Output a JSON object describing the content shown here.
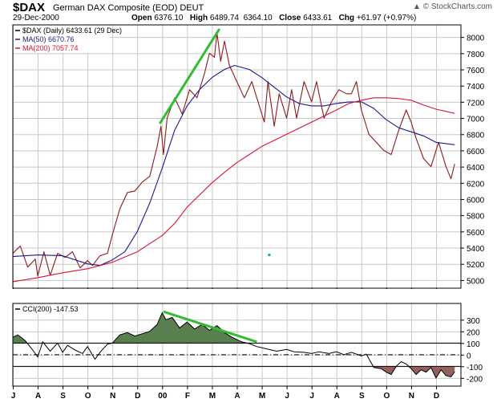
{
  "header": {
    "symbol": "$DAX",
    "description": "German DAX Composite (EOD)",
    "exchange": "DEUT",
    "date": "29-Dec-2000",
    "open_label": "Open",
    "open": "6376.10",
    "high_label": "High",
    "high": "6489.74",
    "low": "6364.10",
    "close_label": "Close",
    "close": "6433.61",
    "chg_label": "Chg",
    "chg": "+61.97 (+0.97%)",
    "watermark": "© StockCharts.com",
    "watermark_arrow": "▲"
  },
  "colors": {
    "price": "#8b1a1a",
    "ma50": "#1a1a8c",
    "ma200": "#dd1133",
    "trend": "#33bb33",
    "cci_pos_fill": "#5a7f4e",
    "cci_neg_fill": "#94605c",
    "grid": "#c8c8c8"
  },
  "chart_data": [
    {
      "type": "line",
      "title": "German DAX Composite (EOD)",
      "legend": [
        {
          "label": "$DAX (Daily) 6433.61 (29 Dec)",
          "color": "#000000"
        },
        {
          "label": "MA(50) 6670.76",
          "color": "#1a1a8c"
        },
        {
          "label": "MA(200) 7057.74",
          "color": "#dd1133"
        }
      ],
      "x_range": [
        0,
        18
      ],
      "ylim": [
        4900,
        8150
      ],
      "yticks": [
        5000,
        5200,
        5400,
        5600,
        5800,
        6000,
        6200,
        6400,
        6600,
        6800,
        7000,
        7200,
        7400,
        7600,
        7800,
        8000
      ],
      "ylabels": [
        "5000",
        "5200",
        "5400",
        "5600",
        "5800",
        "6000",
        "6200",
        "6400",
        "6600",
        "6800",
        "7000",
        "7200",
        "7400",
        "7600",
        "7800",
        "8000"
      ],
      "xtick_labels": [
        {
          "x": 0,
          "label": "J"
        },
        {
          "x": 1,
          "label": "A"
        },
        {
          "x": 2,
          "label": "S"
        },
        {
          "x": 3,
          "label": "O"
        },
        {
          "x": 4,
          "label": "N"
        },
        {
          "x": 5,
          "label": "D"
        },
        {
          "x": 6,
          "label": "00"
        },
        {
          "x": 7,
          "label": "F"
        },
        {
          "x": 8,
          "label": "M"
        },
        {
          "x": 9,
          "label": "A"
        },
        {
          "x": 10,
          "label": "M"
        },
        {
          "x": 11,
          "label": "J"
        },
        {
          "x": 12,
          "label": "J"
        },
        {
          "x": 13,
          "label": "A"
        },
        {
          "x": 14,
          "label": "S"
        },
        {
          "x": 15,
          "label": "O"
        },
        {
          "x": 16,
          "label": "N"
        },
        {
          "x": 17,
          "label": "D"
        }
      ],
      "series": [
        {
          "name": "$DAX (Daily)",
          "color": "#8b1a1a",
          "points": [
            [
              0.0,
              5330
            ],
            [
              0.3,
              5420
            ],
            [
              0.6,
              5160
            ],
            [
              0.9,
              5260
            ],
            [
              1.0,
              5050
            ],
            [
              1.25,
              5350
            ],
            [
              1.5,
              5060
            ],
            [
              1.8,
              5330
            ],
            [
              2.1,
              5280
            ],
            [
              2.4,
              5350
            ],
            [
              2.7,
              5150
            ],
            [
              3.0,
              5240
            ],
            [
              3.2,
              5180
            ],
            [
              3.5,
              5300
            ],
            [
              3.8,
              5330
            ],
            [
              4.0,
              5560
            ],
            [
              4.3,
              5880
            ],
            [
              4.6,
              6080
            ],
            [
              4.9,
              6100
            ],
            [
              5.2,
              6210
            ],
            [
              5.5,
              6280
            ],
            [
              5.8,
              6650
            ],
            [
              5.95,
              6900
            ],
            [
              6.05,
              6550
            ],
            [
              6.2,
              7000
            ],
            [
              6.5,
              7250
            ],
            [
              6.8,
              7050
            ],
            [
              7.1,
              7350
            ],
            [
              7.4,
              7250
            ],
            [
              7.7,
              7550
            ],
            [
              7.9,
              7800
            ],
            [
              8.1,
              7750
            ],
            [
              8.2,
              8050
            ],
            [
              8.35,
              7700
            ],
            [
              8.5,
              7950
            ],
            [
              8.7,
              7650
            ],
            [
              9.0,
              7450
            ],
            [
              9.3,
              7250
            ],
            [
              9.6,
              7450
            ],
            [
              9.9,
              7150
            ],
            [
              10.1,
              6950
            ],
            [
              10.25,
              7450
            ],
            [
              10.5,
              6900
            ],
            [
              10.7,
              7300
            ],
            [
              11.0,
              7000
            ],
            [
              11.2,
              7350
            ],
            [
              11.4,
              7000
            ],
            [
              11.7,
              7450
            ],
            [
              12.0,
              7200
            ],
            [
              12.2,
              7450
            ],
            [
              12.5,
              7000
            ],
            [
              12.8,
              7200
            ],
            [
              13.1,
              7350
            ],
            [
              13.4,
              7300
            ],
            [
              13.6,
              7300
            ],
            [
              13.8,
              7450
            ],
            [
              14.0,
              7100
            ],
            [
              14.3,
              6800
            ],
            [
              14.6,
              6700
            ],
            [
              14.9,
              6600
            ],
            [
              15.2,
              6550
            ],
            [
              15.5,
              6850
            ],
            [
              15.8,
              7100
            ],
            [
              16.0,
              6950
            ],
            [
              16.2,
              6750
            ],
            [
              16.5,
              6500
            ],
            [
              16.8,
              6400
            ],
            [
              17.1,
              6700
            ],
            [
              17.4,
              6400
            ],
            [
              17.6,
              6250
            ],
            [
              17.75,
              6433.61
            ]
          ]
        },
        {
          "name": "MA(50)",
          "color": "#1a1a8c",
          "points": [
            [
              0,
              5290
            ],
            [
              1,
              5310
            ],
            [
              2,
              5300
            ],
            [
              3,
              5200
            ],
            [
              3.5,
              5180
            ],
            [
              4,
              5250
            ],
            [
              4.5,
              5350
            ],
            [
              5,
              5600
            ],
            [
              5.5,
              5950
            ],
            [
              6,
              6380
            ],
            [
              6.5,
              6850
            ],
            [
              7,
              7150
            ],
            [
              7.5,
              7350
            ],
            [
              8,
              7500
            ],
            [
              8.5,
              7600
            ],
            [
              8.9,
              7650
            ],
            [
              9.5,
              7600
            ],
            [
              10,
              7500
            ],
            [
              10.5,
              7380
            ],
            [
              11,
              7260
            ],
            [
              11.5,
              7180
            ],
            [
              12,
              7150
            ],
            [
              12.5,
              7150
            ],
            [
              13,
              7180
            ],
            [
              13.5,
              7200
            ],
            [
              14,
              7200
            ],
            [
              14.5,
              7120
            ],
            [
              15,
              6980
            ],
            [
              15.5,
              6880
            ],
            [
              16,
              6830
            ],
            [
              16.5,
              6780
            ],
            [
              17,
              6700
            ],
            [
              17.75,
              6670.76
            ]
          ]
        },
        {
          "name": "MA(200)",
          "color": "#dd1133",
          "points": [
            [
              0,
              4980
            ],
            [
              1,
              5030
            ],
            [
              2,
              5090
            ],
            [
              3,
              5140
            ],
            [
              4,
              5220
            ],
            [
              5,
              5350
            ],
            [
              6,
              5550
            ],
            [
              6.5,
              5700
            ],
            [
              7,
              5900
            ],
            [
              7.5,
              6050
            ],
            [
              8,
              6200
            ],
            [
              8.5,
              6330
            ],
            [
              9,
              6450
            ],
            [
              9.5,
              6550
            ],
            [
              10,
              6650
            ],
            [
              11,
              6800
            ],
            [
              12,
              6950
            ],
            [
              13,
              7100
            ],
            [
              13.5,
              7180
            ],
            [
              14,
              7220
            ],
            [
              14.5,
              7250
            ],
            [
              15,
              7250
            ],
            [
              15.5,
              7240
            ],
            [
              16,
              7220
            ],
            [
              16.5,
              7160
            ],
            [
              17,
              7110
            ],
            [
              17.75,
              7057.74
            ]
          ]
        }
      ],
      "trendlines": [
        [
          [
            5.9,
            6930
          ],
          [
            8.3,
            8100
          ]
        ]
      ],
      "markers": [
        {
          "x": 10.3,
          "y": 5310
        }
      ]
    },
    {
      "type": "area",
      "title": "CCI(200)",
      "legend": [
        {
          "label": "CCI(200) -147.53",
          "color": "#000000"
        }
      ],
      "x_range": [
        0,
        18
      ],
      "ylim": [
        -270,
        440
      ],
      "yticks": [
        -200,
        -100,
        0,
        100,
        200,
        300
      ],
      "ylabels": [
        "-200",
        "-100",
        "0",
        "100",
        "200",
        "300"
      ],
      "reference_lines": [
        100,
        -100
      ],
      "zero_line": 0,
      "xtick_labels": [
        {
          "x": 0,
          "label": "J"
        },
        {
          "x": 1,
          "label": "A"
        },
        {
          "x": 2,
          "label": "S"
        },
        {
          "x": 3,
          "label": "O"
        },
        {
          "x": 4,
          "label": "N"
        },
        {
          "x": 5,
          "label": "D"
        },
        {
          "x": 6,
          "label": "00"
        },
        {
          "x": 7,
          "label": "F"
        },
        {
          "x": 8,
          "label": "M"
        },
        {
          "x": 9,
          "label": "A"
        },
        {
          "x": 10,
          "label": "M"
        },
        {
          "x": 11,
          "label": "J"
        },
        {
          "x": 12,
          "label": "J"
        },
        {
          "x": 13,
          "label": "A"
        },
        {
          "x": 14,
          "label": "S"
        },
        {
          "x": 15,
          "label": "O"
        },
        {
          "x": 16,
          "label": "N"
        },
        {
          "x": 17,
          "label": "D"
        }
      ],
      "series": [
        {
          "name": "CCI(200)",
          "color": "#000000",
          "points": [
            [
              0.0,
              150
            ],
            [
              0.2,
              170
            ],
            [
              0.5,
              120
            ],
            [
              0.8,
              40
            ],
            [
              1.0,
              -20
            ],
            [
              1.2,
              110
            ],
            [
              1.5,
              30
            ],
            [
              1.8,
              100
            ],
            [
              2.0,
              20
            ],
            [
              2.2,
              80
            ],
            [
              2.5,
              40
            ],
            [
              2.8,
              10
            ],
            [
              3.0,
              70
            ],
            [
              3.3,
              -40
            ],
            [
              3.5,
              20
            ],
            [
              3.8,
              90
            ],
            [
              4.0,
              100
            ],
            [
              4.3,
              170
            ],
            [
              4.6,
              190
            ],
            [
              4.9,
              160
            ],
            [
              5.2,
              180
            ],
            [
              5.5,
              200
            ],
            [
              5.8,
              260
            ],
            [
              6.0,
              360
            ],
            [
              6.15,
              300
            ],
            [
              6.4,
              320
            ],
            [
              6.7,
              230
            ],
            [
              7.0,
              280
            ],
            [
              7.3,
              220
            ],
            [
              7.6,
              260
            ],
            [
              7.9,
              210
            ],
            [
              8.2,
              250
            ],
            [
              8.5,
              190
            ],
            [
              8.8,
              150
            ],
            [
              9.2,
              110
            ],
            [
              9.5,
              95
            ],
            [
              9.8,
              70
            ],
            [
              10.2,
              50
            ],
            [
              10.6,
              30
            ],
            [
              11.0,
              45
            ],
            [
              11.3,
              25
            ],
            [
              11.7,
              20
            ],
            [
              12.0,
              10
            ],
            [
              12.3,
              25
            ],
            [
              12.7,
              10
            ],
            [
              13.0,
              25
            ],
            [
              13.3,
              0
            ],
            [
              13.6,
              20
            ],
            [
              14.0,
              -10
            ],
            [
              14.2,
              5
            ],
            [
              14.5,
              -110
            ],
            [
              14.8,
              -120
            ],
            [
              15.0,
              -150
            ],
            [
              15.2,
              -170
            ],
            [
              15.4,
              -100
            ],
            [
              15.6,
              -60
            ],
            [
              15.8,
              -80
            ],
            [
              16.0,
              -120
            ],
            [
              16.2,
              -170
            ],
            [
              16.4,
              -130
            ],
            [
              16.6,
              -150
            ],
            [
              16.8,
              -110
            ],
            [
              17.0,
              -200
            ],
            [
              17.2,
              -130
            ],
            [
              17.4,
              -180
            ],
            [
              17.6,
              -190
            ],
            [
              17.75,
              -147.53
            ]
          ]
        }
      ],
      "trendlines": [
        [
          [
            6.05,
            370
          ],
          [
            9.8,
            110
          ]
        ]
      ]
    }
  ]
}
